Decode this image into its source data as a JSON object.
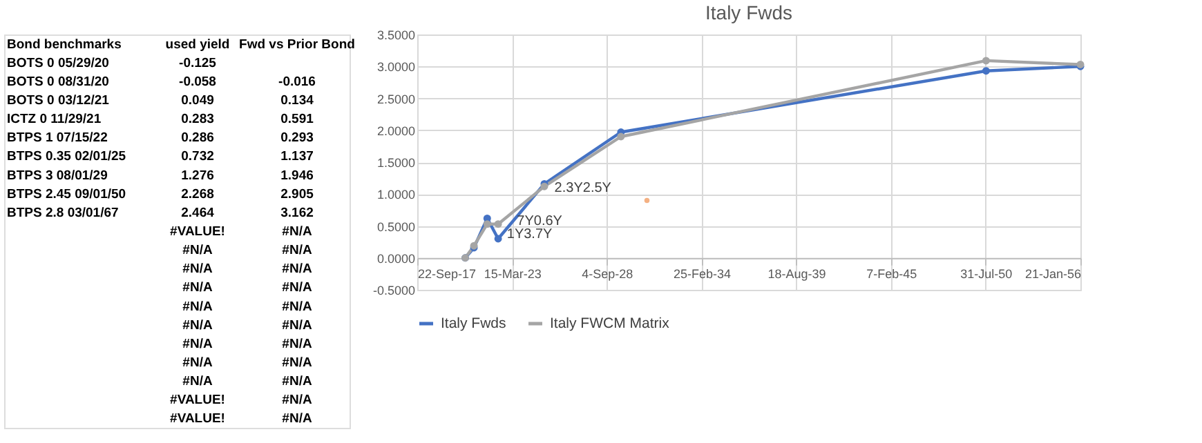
{
  "chart_data": [
    {
      "type": "other",
      "annotations": [
        "Bond benchmarks",
        "used yield",
        "Fwd vs Prior Bond",
        "BOTS 0 05/29/20",
        "-0.125",
        null,
        "BOTS 0 08/31/20",
        "-0.058",
        "-0.016",
        "BOTS 0 03/12/21",
        "0.049",
        "0.134",
        "ICTZ 0 11/29/21",
        "0.283",
        "0.591",
        "BTPS 1 07/15/22",
        "0.286",
        "0.293",
        "BTPS 0.35 02/01/25",
        "0.732",
        "1.137",
        "BTPS 3 08/01/29",
        "1.276",
        "1.946",
        "BTPS 2.45 09/01/50",
        "2.268",
        "2.905",
        "BTPS 2.8 03/01/67",
        "2.464",
        "3.162",
        null,
        "#VALUE!",
        "#N/A",
        null,
        "#N/A",
        "#N/A",
        null,
        "#N/A",
        "#N/A",
        null,
        "#N/A",
        "#N/A",
        null,
        "#N/A",
        "#N/A",
        null,
        "#N/A",
        "#N/A",
        null,
        "#N/A",
        "#N/A",
        null,
        "#N/A",
        "#N/A",
        null,
        "#N/A",
        "#N/A",
        null,
        "#VALUE!",
        "#N/A",
        null,
        "#VALUE!",
        "#N/A"
      ]
    },
    {
      "type": "line",
      "title": "Italy Fwds",
      "marker": "circle",
      "grid": true,
      "legend": "bottom",
      "x": [
        "2020-07-01",
        "2021-01-01",
        "2021-10-08",
        "2022-05-27",
        "2025-01-26",
        "2029-07-01",
        "2050-08-08",
        "2056-01-21"
      ],
      "series": [
        {
          "name": "Italy Fwds",
          "color": "#4472c4",
          "values": [
            0.0,
            0.16,
            0.62,
            0.3,
            1.16,
            1.97,
            2.93,
            3.0
          ]
        },
        {
          "name": "Italy FWCM Matrix",
          "color": "#a5a5a5",
          "values": [
            0.0,
            0.19,
            0.53,
            0.53,
            1.12,
            1.9,
            3.09,
            3.03
          ]
        },
        {
          "type": "scatter",
          "color": "#f4b183",
          "x": [
            "2031-01-01"
          ],
          "values": [
            0.9
          ]
        }
      ],
      "xlim": [
        "2017-09-22",
        "2056-01-21"
      ],
      "xticks": [
        {
          "value": "2017-09-22",
          "label": "22-Sep-17"
        },
        {
          "value": "2023-03-15",
          "label": "15-Mar-23"
        },
        {
          "value": "2028-09-04",
          "label": "4-Sep-28"
        },
        {
          "value": "2034-02-25",
          "label": "25-Feb-34"
        },
        {
          "value": "2039-08-18",
          "label": "18-Aug-39"
        },
        {
          "value": "2045-02-07",
          "label": "7-Feb-45"
        },
        {
          "value": "2050-07-31",
          "label": "31-Jul-50"
        },
        {
          "value": "2056-01-21",
          "label": "21-Jan-56"
        }
      ],
      "ylim": [
        -0.5,
        3.5
      ],
      "yticks": [
        {
          "value": -0.5,
          "label": "-0.5000"
        },
        {
          "value": 0,
          "label": "0.0000"
        },
        {
          "value": 0.5,
          "label": "0.5000"
        },
        {
          "value": 1,
          "label": "1.0000"
        },
        {
          "value": 1.5,
          "label": "1.5000"
        },
        {
          "value": 2,
          "label": "2.0000"
        },
        {
          "value": 2.5,
          "label": "2.5000"
        },
        {
          "value": 3,
          "label": "3.0000"
        },
        {
          "value": 3.5,
          "label": "3.5000"
        }
      ],
      "annotations": [
        {
          "text": "2.3Y2.5Y",
          "x": "2025-06-01",
          "y": 1.1
        },
        {
          "text": "1Y3.7Y",
          "x": "2022-09-01",
          "y": 0.38
        },
        {
          "text": "7Y0.6Y",
          "x": "2023-04-01",
          "y": 0.58
        }
      ]
    }
  ]
}
